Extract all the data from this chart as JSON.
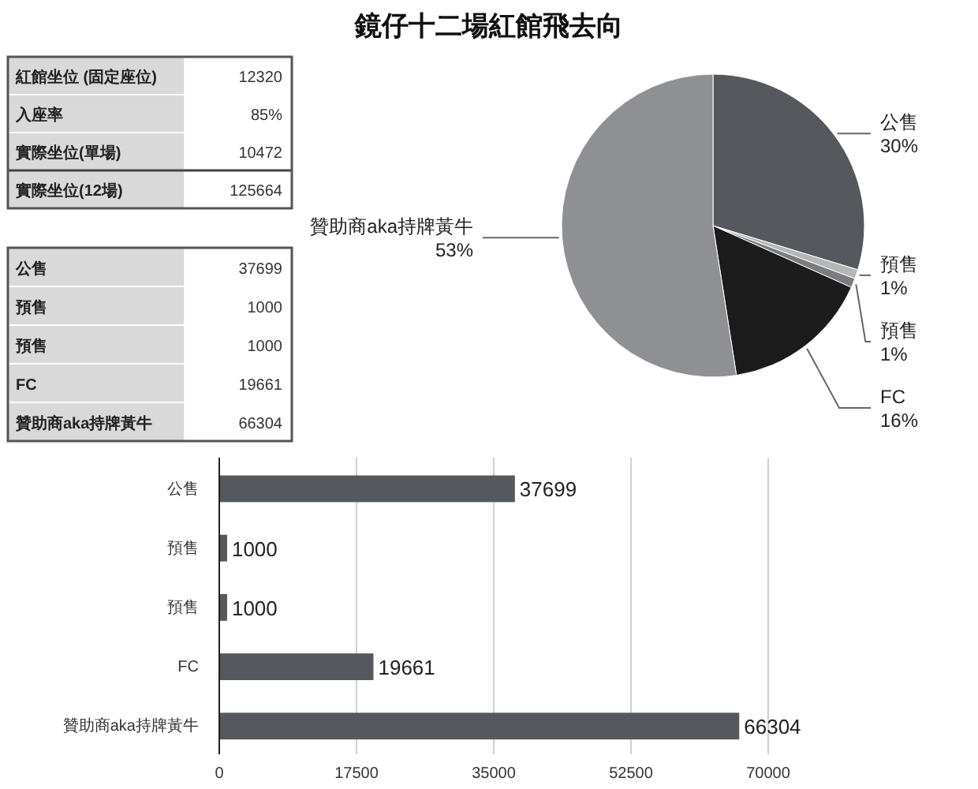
{
  "chart_data": [
    {
      "type": "other",
      "title": "鏡仔十二場紅館飛去向",
      "categories": [
        "紅館坐位 (固定座位)",
        "入座率",
        "實際坐位(單場)",
        "實際坐位(12場)"
      ],
      "value_labels": [
        "12320",
        "85%",
        "10472",
        "125664"
      ]
    },
    {
      "type": "other",
      "categories": [
        "公售",
        "預售",
        "預售",
        "FC",
        "贊助商aka持牌黃牛"
      ],
      "value_labels": [
        "37699",
        "1000",
        "1000",
        "19661",
        "66304"
      ]
    },
    {
      "type": "pie",
      "categories": [
        "公售",
        "預售",
        "預售",
        "FC",
        "贊助商aka持牌黃牛"
      ],
      "values": [
        30,
        1,
        1,
        16,
        53
      ],
      "value_labels": [
        "30%",
        "1%",
        "1%",
        "16%",
        "53%"
      ],
      "colors": [
        "#55585c",
        "#b4b6b8",
        "#7a7c80",
        "#1c1c1c",
        "#8e9094"
      ]
    },
    {
      "type": "bar",
      "orientation": "horizontal",
      "categories": [
        "公售",
        "預售",
        "預售",
        "FC",
        "贊助商aka持牌黃牛"
      ],
      "series": [
        {
          "color": "#55585c",
          "values": [
            37699,
            1000,
            1000,
            19661,
            66304
          ]
        }
      ],
      "xlim": [
        0,
        70000
      ],
      "xticks": [
        0,
        17500,
        35000,
        52500,
        70000
      ],
      "grid": "x",
      "data_labels": true
    }
  ]
}
